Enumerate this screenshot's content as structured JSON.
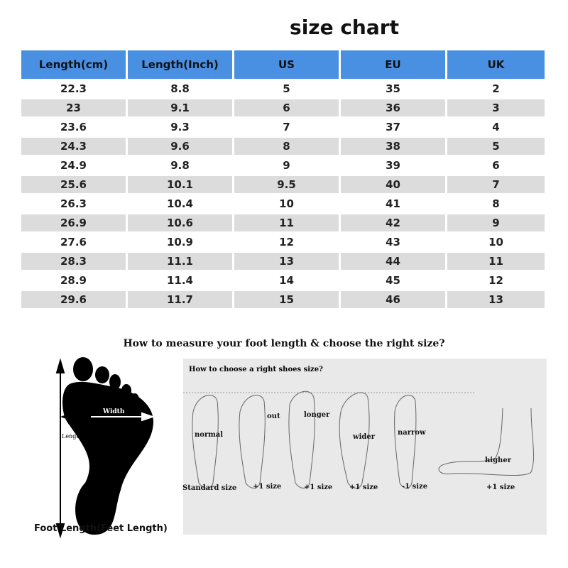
{
  "title": "size chart",
  "table": {
    "headers": [
      "Length(cm)",
      "Length(Inch)",
      "US",
      "EU",
      "UK"
    ],
    "rows": [
      [
        "22.3",
        "8.8",
        "5",
        "35",
        "2"
      ],
      [
        "23",
        "9.1",
        "6",
        "36",
        "3"
      ],
      [
        "23.6",
        "9.3",
        "7",
        "37",
        "4"
      ],
      [
        "24.3",
        "9.6",
        "8",
        "38",
        "5"
      ],
      [
        "24.9",
        "9.8",
        "9",
        "39",
        "6"
      ],
      [
        "25.6",
        "10.1",
        "9.5",
        "40",
        "7"
      ],
      [
        "26.3",
        "10.4",
        "10",
        "41",
        "8"
      ],
      [
        "26.9",
        "10.6",
        "11",
        "42",
        "9"
      ],
      [
        "27.6",
        "10.9",
        "12",
        "43",
        "10"
      ],
      [
        "28.3",
        "11.1",
        "13",
        "44",
        "11"
      ],
      [
        "28.9",
        "11.4",
        "14",
        "45",
        "12"
      ],
      [
        "29.6",
        "11.7",
        "15",
        "46",
        "13"
      ]
    ],
    "header_color": "#4a90e2",
    "alt_row_color": "#dcdcdc"
  },
  "measure": {
    "heading": "How to measure your foot length & choose the right size?",
    "width_label": "Width",
    "length_label": "Length",
    "caption": "Foot Length(Feet Length)"
  },
  "choose": {
    "heading": "How to choose a right shoes size?",
    "feet": [
      {
        "label": "normal",
        "size": "Standard size"
      },
      {
        "label": "out",
        "size": "+1 size"
      },
      {
        "label": "longer",
        "size": "+1 size"
      },
      {
        "label": "wider",
        "size": "+1 size"
      },
      {
        "label": "narrow",
        "size": "-1 size"
      },
      {
        "label": "higher",
        "size": "+1 size"
      }
    ]
  }
}
